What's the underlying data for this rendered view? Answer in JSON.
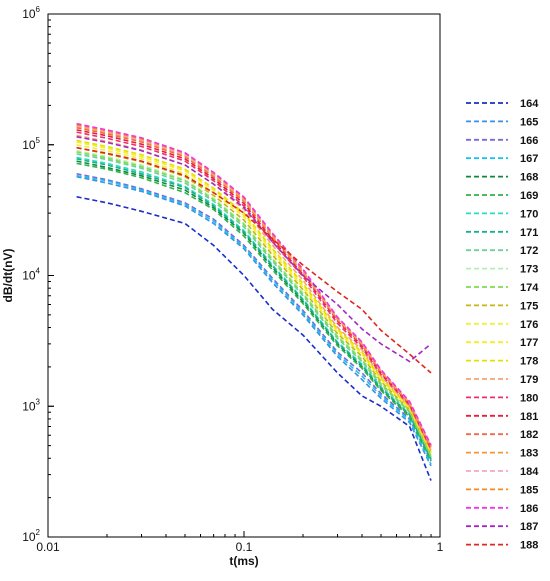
{
  "chart_data": {
    "type": "line",
    "xlabel": "t(ms)",
    "ylabel": "dB/dt(nV)",
    "x_scale": "log",
    "y_scale": "log",
    "xlim": [
      0.01,
      1
    ],
    "ylim": [
      100,
      1000000
    ],
    "x_ticks": [
      {
        "value": 0.01,
        "label": "0.01"
      },
      {
        "value": 0.1,
        "label": "0.1"
      },
      {
        "value": 1,
        "label": "1"
      }
    ],
    "y_ticks": [
      {
        "value": 100,
        "base": "10",
        "exp": "2"
      },
      {
        "value": 1000,
        "base": "10",
        "exp": "3"
      },
      {
        "value": 10000,
        "base": "10",
        "exp": "4"
      },
      {
        "value": 100000,
        "base": "10",
        "exp": "5"
      },
      {
        "value": 1000000,
        "base": "10",
        "exp": "6"
      }
    ],
    "grid": false,
    "legend_position": "right",
    "line_style": "dashed",
    "x": [
      0.014,
      0.02,
      0.03,
      0.05,
      0.07,
      0.1,
      0.14,
      0.2,
      0.3,
      0.4,
      0.5,
      0.7,
      0.9
    ],
    "series": [
      {
        "name": "164",
        "color": "#1a2fc9",
        "values": [
          40000,
          36000,
          31000,
          25000,
          17000,
          10000,
          5500,
          3500,
          1800,
          1200,
          1000,
          700,
          270
        ]
      },
      {
        "name": "165",
        "color": "#3a8fe6",
        "values": [
          57000,
          51000,
          44000,
          34000,
          25000,
          16000,
          8800,
          5000,
          2400,
          1600,
          1150,
          750,
          350
        ]
      },
      {
        "name": "166",
        "color": "#7a6ad9",
        "values": [
          60000,
          54000,
          46000,
          36000,
          27000,
          17000,
          9500,
          5400,
          2600,
          1800,
          1250,
          800,
          380
        ]
      },
      {
        "name": "167",
        "color": "#1ec1e8",
        "values": [
          58000,
          53000,
          45000,
          35000,
          26000,
          16500,
          9200,
          5200,
          2500,
          1700,
          1200,
          780,
          360
        ]
      },
      {
        "name": "168",
        "color": "#0c8a3a",
        "values": [
          75000,
          67000,
          58000,
          45000,
          33000,
          21000,
          11500,
          6300,
          3000,
          2000,
          1350,
          850,
          390
        ]
      },
      {
        "name": "169",
        "color": "#2fb24a",
        "values": [
          72000,
          65000,
          56000,
          43000,
          32000,
          20000,
          11000,
          6100,
          2900,
          1950,
          1320,
          830,
          380
        ]
      },
      {
        "name": "170",
        "color": "#22e0c0",
        "values": [
          80000,
          72000,
          62000,
          48000,
          35000,
          22000,
          12000,
          6600,
          3100,
          2100,
          1400,
          870,
          400
        ]
      },
      {
        "name": "171",
        "color": "#1fae8c",
        "values": [
          78000,
          70000,
          60000,
          47000,
          34000,
          21500,
          11800,
          6500,
          3050,
          2050,
          1380,
          860,
          390
        ]
      },
      {
        "name": "172",
        "color": "#6fcf9c",
        "values": [
          85000,
          77000,
          66000,
          51000,
          37000,
          23500,
          12800,
          7000,
          3300,
          2200,
          1450,
          900,
          410
        ]
      },
      {
        "name": "173",
        "color": "#b2efb0",
        "values": [
          90000,
          81000,
          70000,
          54000,
          39000,
          25000,
          13500,
          7400,
          3450,
          2300,
          1500,
          920,
          420
        ]
      },
      {
        "name": "174",
        "color": "#7fdc52",
        "values": [
          88000,
          79000,
          68000,
          53000,
          38000,
          24500,
          13200,
          7200,
          3400,
          2250,
          1480,
          910,
          415
        ]
      },
      {
        "name": "175",
        "color": "#c9b30f",
        "values": [
          95000,
          85000,
          74000,
          57000,
          41000,
          26500,
          14300,
          7800,
          3600,
          2400,
          1550,
          940,
          430
        ]
      },
      {
        "name": "176",
        "color": "#f3ef3a",
        "values": [
          100000,
          90000,
          78000,
          60000,
          43000,
          28000,
          15000,
          8100,
          3700,
          2500,
          1600,
          960,
          440
        ]
      },
      {
        "name": "177",
        "color": "#f6ee22",
        "values": [
          105000,
          94000,
          81000,
          63000,
          45000,
          29000,
          15600,
          8400,
          3800,
          2550,
          1620,
          970,
          445
        ]
      },
      {
        "name": "178",
        "color": "#e3e000",
        "values": [
          108000,
          97000,
          84000,
          65000,
          46500,
          30000,
          16000,
          8700,
          3900,
          2600,
          1650,
          980,
          450
        ]
      },
      {
        "name": "179",
        "color": "#f7a173",
        "values": [
          118000,
          106000,
          91000,
          70000,
          50000,
          32000,
          17000,
          9200,
          4000,
          2700,
          1700,
          1000,
          460
        ]
      },
      {
        "name": "180",
        "color": "#ee2f6d",
        "values": [
          125000,
          112000,
          97000,
          75000,
          53000,
          34000,
          18000,
          9800,
          4300,
          2800,
          1750,
          1020,
          470
        ]
      },
      {
        "name": "181",
        "color": "#e81e3a",
        "values": [
          130000,
          117000,
          101000,
          78000,
          55000,
          35500,
          18800,
          10200,
          4500,
          2900,
          1800,
          1040,
          480
        ]
      },
      {
        "name": "182",
        "color": "#f06a4a",
        "values": [
          135000,
          121000,
          105000,
          81000,
          57000,
          37000,
          19500,
          10500,
          4600,
          2950,
          1820,
          1050,
          485
        ]
      },
      {
        "name": "183",
        "color": "#f7962e",
        "values": [
          138000,
          124000,
          107000,
          83000,
          58500,
          37800,
          20000,
          10700,
          4650,
          3000,
          1850,
          1060,
          490
        ]
      },
      {
        "name": "184",
        "color": "#f7a6c4",
        "values": [
          140000,
          126000,
          109000,
          84000,
          59500,
          38500,
          20300,
          10900,
          4700,
          3050,
          1870,
          1070,
          495
        ]
      },
      {
        "name": "185",
        "color": "#f28b1c",
        "values": [
          142000,
          128000,
          111000,
          86000,
          60500,
          39000,
          20600,
          11000,
          4750,
          3080,
          1880,
          1080,
          500
        ]
      },
      {
        "name": "186",
        "color": "#ee36e6",
        "values": [
          145000,
          130000,
          113000,
          87000,
          61500,
          39800,
          21000,
          11200,
          4800,
          3100,
          1900,
          1090,
          505
        ]
      },
      {
        "name": "187",
        "color": "#a22ac2",
        "values": [
          115000,
          104000,
          90000,
          70000,
          50000,
          33000,
          18000,
          10000,
          6000,
          3900,
          3000,
          2200,
          3000
        ]
      },
      {
        "name": "188",
        "color": "#e1261c",
        "values": [
          95000,
          86000,
          75000,
          58000,
          43000,
          30000,
          19000,
          12000,
          7500,
          5500,
          3800,
          2500,
          1800
        ]
      }
    ]
  }
}
